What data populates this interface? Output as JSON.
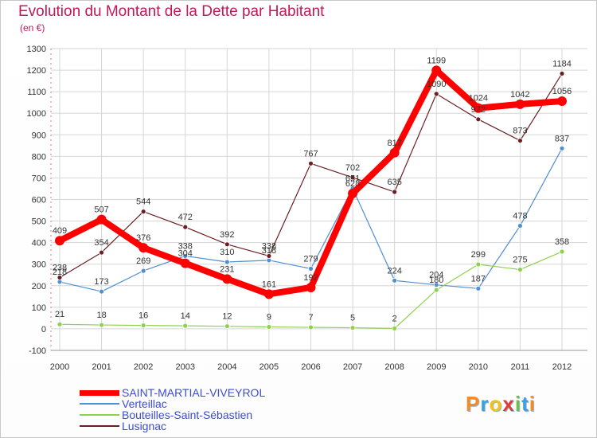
{
  "chart_data": {
    "type": "line",
    "title": "Evolution du Montant de la Dette par Habitant",
    "subtitle": "(en €)",
    "x": [
      "2000",
      "2001",
      "2002",
      "2003",
      "2004",
      "2005",
      "2006",
      "2007",
      "2008",
      "2009",
      "2010",
      "2011",
      "2012"
    ],
    "ylim": [
      -100,
      1300
    ],
    "yticks": [
      -100,
      0,
      100,
      200,
      300,
      400,
      500,
      600,
      700,
      800,
      900,
      1000,
      1100,
      1200,
      1300
    ],
    "grid": true,
    "legend_position": "bottom-left",
    "series": [
      {
        "name": "SAINT-MARTIAL-VIVEYROL",
        "color": "#ff0000",
        "values": [
          409,
          507,
          376,
          304,
          231,
          161,
          192,
          628,
          817,
          1199,
          1024,
          1042,
          1056
        ]
      },
      {
        "name": "Verteillac",
        "color": "#4f8fd3",
        "values": [
          218,
          173,
          269,
          338,
          310,
          318,
          279,
          651,
          224,
          204,
          187,
          478,
          837
        ]
      },
      {
        "name": "Bouteilles-Saint-Sébastien",
        "color": "#8fd14f",
        "values": [
          21,
          18,
          16,
          14,
          12,
          9,
          7,
          5,
          2,
          180,
          299,
          275,
          358
        ]
      },
      {
        "name": "Lusignac",
        "color": "#6b1f24",
        "values": [
          238,
          354,
          544,
          472,
          392,
          338,
          767,
          702,
          635,
          1090,
          972,
          873,
          1184
        ]
      }
    ],
    "labels": [
      {
        "value": "409",
        "series": 0,
        "i": 0
      },
      {
        "value": "507",
        "series": 0,
        "i": 1
      },
      {
        "value": "376",
        "series": 0,
        "i": 2
      },
      {
        "value": "304",
        "series": 0,
        "i": 3
      },
      {
        "value": "231",
        "series": 0,
        "i": 4
      },
      {
        "value": "161",
        "series": 0,
        "i": 5
      },
      {
        "value": "192",
        "series": 0,
        "i": 6
      },
      {
        "value": "628",
        "series": 0,
        "i": 7
      },
      {
        "value": "817",
        "series": 0,
        "i": 8
      },
      {
        "value": "1199",
        "series": 0,
        "i": 9
      },
      {
        "value": "1024",
        "series": 0,
        "i": 10
      },
      {
        "value": "1042",
        "series": 0,
        "i": 11
      },
      {
        "value": "1056",
        "series": 0,
        "i": 12
      },
      {
        "value": "218",
        "series": 1,
        "i": 0
      },
      {
        "value": "173",
        "series": 1,
        "i": 1
      },
      {
        "value": "269",
        "series": 1,
        "i": 2
      },
      {
        "value": "338",
        "series": 1,
        "i": 3
      },
      {
        "value": "310",
        "series": 1,
        "i": 4
      },
      {
        "value": "318",
        "series": 1,
        "i": 5
      },
      {
        "value": "279",
        "series": 1,
        "i": 6
      },
      {
        "value": "651",
        "series": 1,
        "i": 7
      },
      {
        "value": "224",
        "series": 1,
        "i": 8
      },
      {
        "value": "204",
        "series": 1,
        "i": 9
      },
      {
        "value": "187",
        "series": 1,
        "i": 10
      },
      {
        "value": "478",
        "series": 1,
        "i": 11
      },
      {
        "value": "837",
        "series": 1,
        "i": 12
      },
      {
        "value": "21",
        "series": 2,
        "i": 0
      },
      {
        "value": "18",
        "series": 2,
        "i": 1
      },
      {
        "value": "16",
        "series": 2,
        "i": 2
      },
      {
        "value": "14",
        "series": 2,
        "i": 3
      },
      {
        "value": "12",
        "series": 2,
        "i": 4
      },
      {
        "value": "9",
        "series": 2,
        "i": 5
      },
      {
        "value": "7",
        "series": 2,
        "i": 6
      },
      {
        "value": "5",
        "series": 2,
        "i": 7
      },
      {
        "value": "2",
        "series": 2,
        "i": 8
      },
      {
        "value": "180",
        "series": 2,
        "i": 9
      },
      {
        "value": "299",
        "series": 2,
        "i": 10
      },
      {
        "value": "275",
        "series": 2,
        "i": 11
      },
      {
        "value": "358",
        "series": 2,
        "i": 12
      },
      {
        "value": "238",
        "series": 3,
        "i": 0
      },
      {
        "value": "354",
        "series": 3,
        "i": 1
      },
      {
        "value": "544",
        "series": 3,
        "i": 2
      },
      {
        "value": "472",
        "series": 3,
        "i": 3
      },
      {
        "value": "392",
        "series": 3,
        "i": 4
      },
      {
        "value": "338",
        "series": 3,
        "i": 5
      },
      {
        "value": "767",
        "series": 3,
        "i": 6
      },
      {
        "value": "702",
        "series": 3,
        "i": 7
      },
      {
        "value": "635",
        "series": 3,
        "i": 8
      },
      {
        "value": "1090",
        "series": 3,
        "i": 9
      },
      {
        "value": "972",
        "series": 3,
        "i": 10
      },
      {
        "value": "873",
        "series": 3,
        "i": 11
      },
      {
        "value": "1184",
        "series": 3,
        "i": 12
      }
    ]
  },
  "logo": {
    "text": "Proxiti",
    "colors": [
      "#f28c28",
      "#3aa0e0",
      "#f2c21b",
      "#e03a3a",
      "#6cc04a",
      "#3aa0e0",
      "#f28c28"
    ]
  }
}
